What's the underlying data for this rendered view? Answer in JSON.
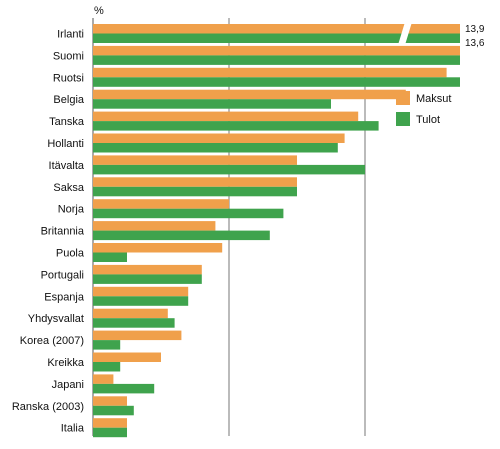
{
  "chart_data": {
    "type": "bar",
    "orientation": "horizontal",
    "unit_label": "%",
    "categories": [
      "Irlanti",
      "Suomi",
      "Ruotsi",
      "Belgia",
      "Tanska",
      "Hollanti",
      "Itävalta",
      "Saksa",
      "Norja",
      "Britannia",
      "Puola",
      "Portugali",
      "Espanja",
      "Yhdysvallat",
      "Korea (2007)",
      "Kreikka",
      "Japani",
      "Ranska (2003)",
      "Italia"
    ],
    "series": [
      {
        "name": "Maksut",
        "color": "#f0a04b",
        "values": [
          13.9,
          7.0,
          5.2,
          4.6,
          3.9,
          3.7,
          3.0,
          3.0,
          2.0,
          1.8,
          1.9,
          1.6,
          1.4,
          1.1,
          1.3,
          1.0,
          0.3,
          0.5,
          0.5
        ]
      },
      {
        "name": "Tulot",
        "color": "#3fa34d",
        "values": [
          13.6,
          7.8,
          7.5,
          3.5,
          4.2,
          3.6,
          4.0,
          3.0,
          2.8,
          2.6,
          0.5,
          1.6,
          1.4,
          1.2,
          0.4,
          0.4,
          0.9,
          0.6,
          0.5
        ]
      }
    ],
    "value_labels": [
      "13,9",
      "13,6"
    ],
    "xlim": [
      0,
      10
    ],
    "axis_break": true,
    "grid": "vertical",
    "legend": "right"
  }
}
